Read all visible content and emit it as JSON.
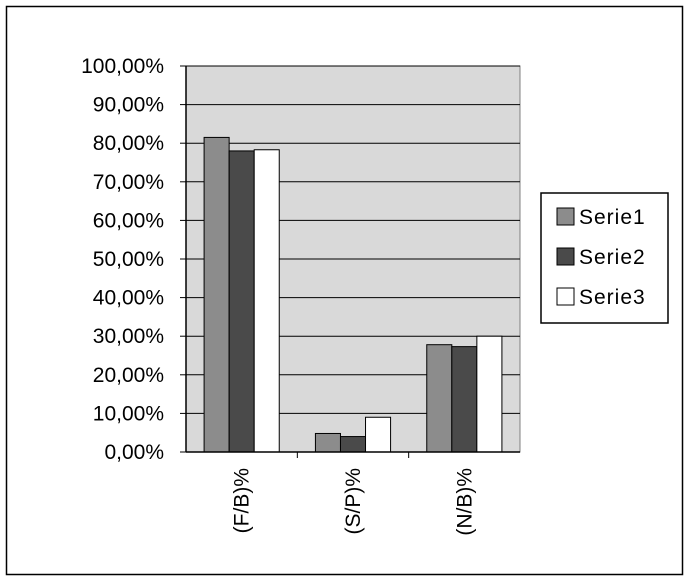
{
  "chart_data": {
    "type": "bar",
    "categories": [
      "(F/B)%",
      "(S/P)%",
      "(N/B)%"
    ],
    "series": [
      {
        "name": "Serie1",
        "values": [
          81.5,
          4.8,
          27.8
        ],
        "color": "#8c8c8c"
      },
      {
        "name": "Serie2",
        "values": [
          78.0,
          4.0,
          27.3
        ],
        "color": "#4a4a4a"
      },
      {
        "name": "Serie3",
        "values": [
          78.3,
          9.0,
          30.0
        ],
        "color": "#ffffff"
      }
    ],
    "ylim": [
      0,
      100
    ],
    "y_ticks": [
      0,
      10,
      20,
      30,
      40,
      50,
      60,
      70,
      80,
      90,
      100
    ],
    "y_tick_labels": [
      "0,00%",
      "10,00%",
      "20,00%",
      "30,00%",
      "40,00%",
      "50,00%",
      "60,00%",
      "70,00%",
      "80,00%",
      "90,00%",
      "100,00%"
    ],
    "grid": true,
    "plot_background": "#d9d9d9",
    "legend_position": "right",
    "title": "",
    "xlabel": "",
    "ylabel": ""
  }
}
